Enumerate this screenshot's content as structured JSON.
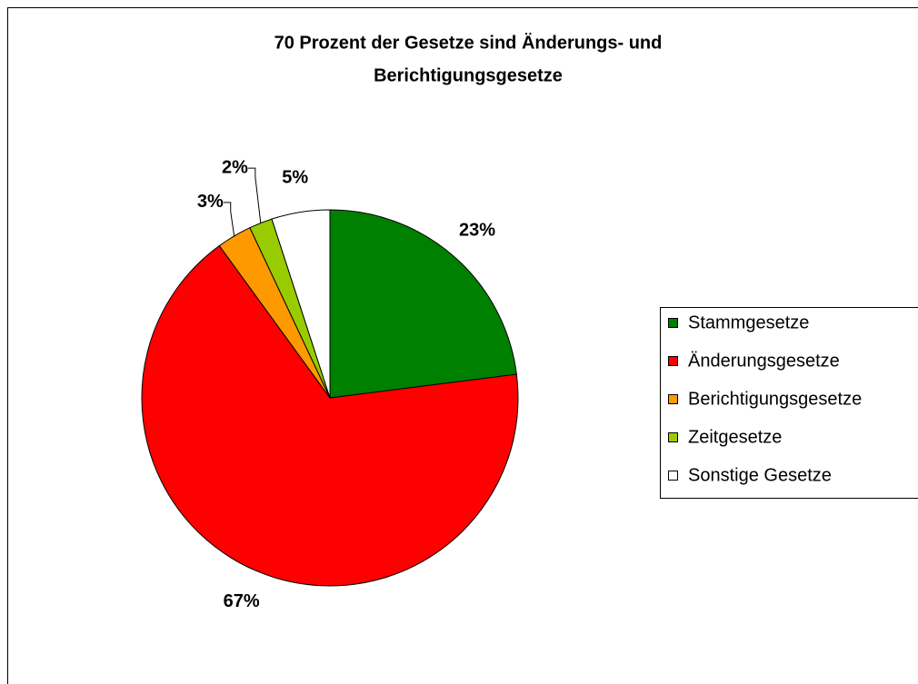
{
  "chart_data": {
    "type": "pie",
    "title": [
      "70 Prozent der Gesetze sind Änderungs- und",
      "Berichtigungsgesetze"
    ],
    "categories": [
      "Stammgesetze",
      "Änderungsgesetze",
      "Berichtigungsgesetze",
      "Zeitgesetze",
      "Sonstige Gesetze"
    ],
    "values": [
      23,
      67,
      3,
      2,
      5
    ],
    "value_labels": [
      "23%",
      "67%",
      "3%",
      "2%",
      "5%"
    ],
    "colors": [
      "#008000",
      "#ff0000",
      "#ff9900",
      "#99cc00",
      "#ffffff"
    ],
    "legend": "right"
  }
}
